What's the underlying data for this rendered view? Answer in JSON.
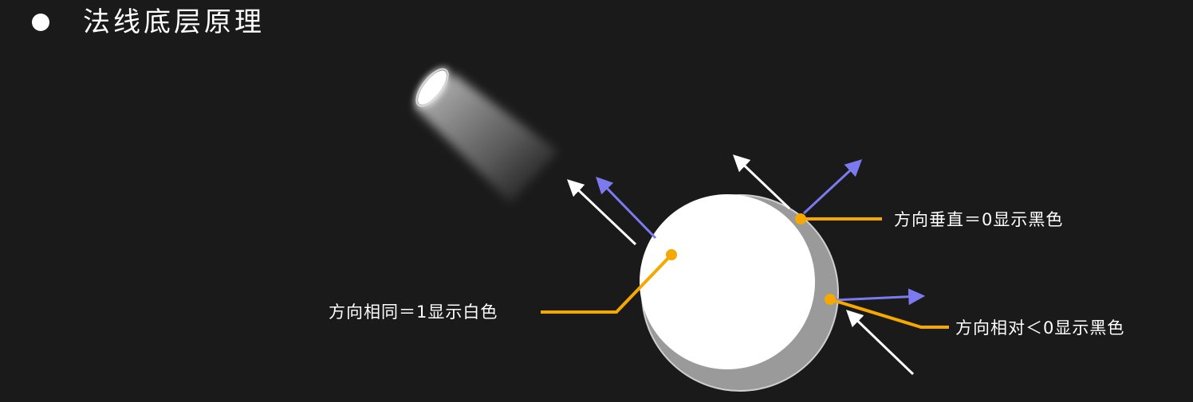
{
  "title": "法线底层原理",
  "labels": {
    "same_direction": "方向相同＝1显示白色",
    "perpendicular": "方向垂直＝0显示黑色",
    "opposite": "方向相对＜0显示黑色"
  },
  "colors": {
    "background": "#1a1a1a",
    "callout": "#f5a800",
    "normal_arrow": "#7b7bef",
    "light_ray": "#ffffff",
    "sphere_lit": "#ffffff",
    "sphere_shadow": "#9a9a9a"
  },
  "icons": {
    "light_source": "spotlight-icon",
    "bullet": "bullet-dot-icon"
  }
}
